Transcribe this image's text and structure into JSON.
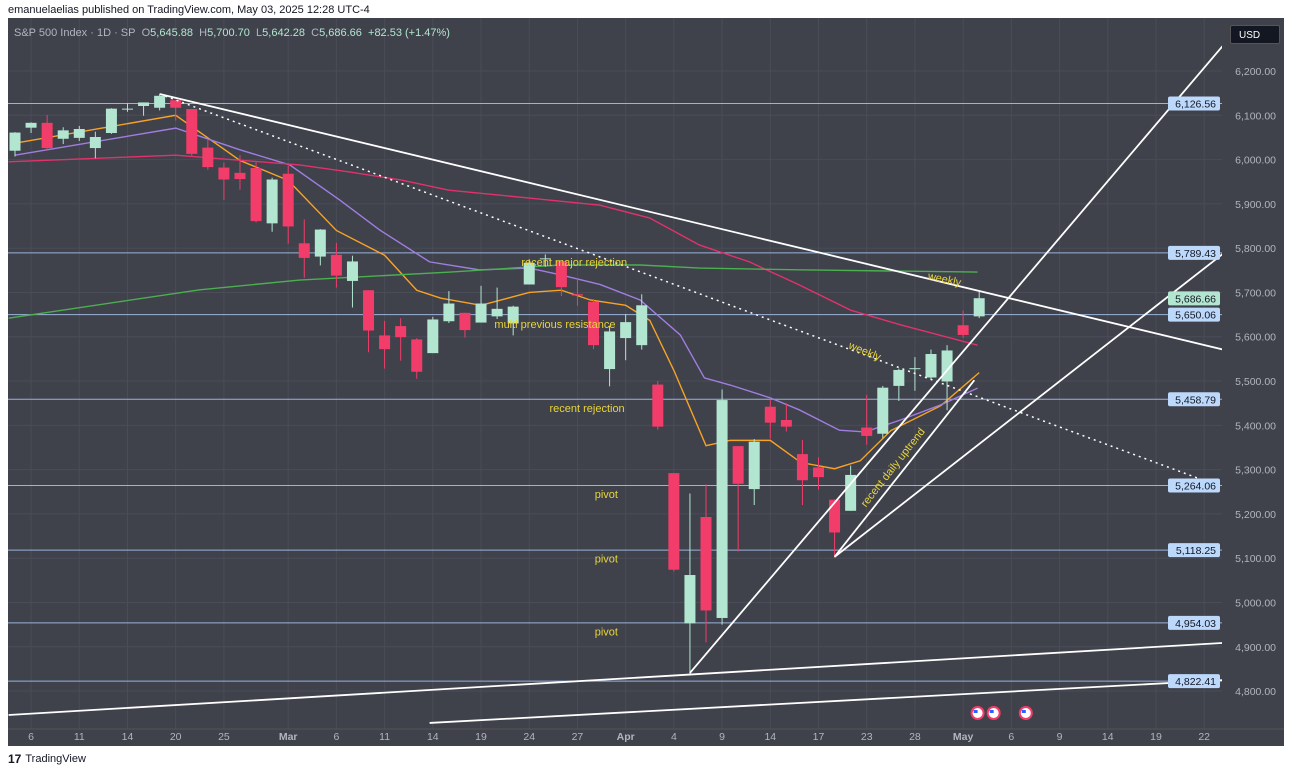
{
  "publisher_line": "emanuelaelias published on TradingView.com, May 03, 2025 12:28 UTC-4",
  "legend": {
    "symbol": "S&P 500 Index · 1D · SP",
    "o_label": "O",
    "o": "5,645.88",
    "h_label": "H",
    "h": "5,700.70",
    "l_label": "L",
    "l": "5,642.28",
    "c_label": "C",
    "c": "5,686.66",
    "change": "+82.53 (+1.47%)"
  },
  "currency": "USD",
  "footer": {
    "brand": "TradingView",
    "logo": "17"
  },
  "colors": {
    "bg": "#3f414b",
    "up": "#b2e6d1",
    "down": "#f23d6a",
    "ema_fast": "#f7a325",
    "ema_mid": "#a07ee0",
    "ma50": "#e0336b",
    "ma200": "#4caf50",
    "level": "#a9c8f5",
    "annotation": "#e8d53a"
  },
  "chart_data": {
    "type": "candlestick",
    "title": "S&P 500 Index · 1D · SP",
    "ylim": [
      4740,
      6270
    ],
    "y_ticks": [
      4800,
      4900,
      5000,
      5100,
      5200,
      5300,
      5400,
      5500,
      5600,
      5700,
      5800,
      5900,
      6000,
      6100,
      6200
    ],
    "y_tick_labels": [
      "4,800.00",
      "4,900.00",
      "5,000.00",
      "5,100.00",
      "5,200.00",
      "5,300.00",
      "5,400.00",
      "5,500.00",
      "5,600.00",
      "5,700.00",
      "5,800.00",
      "5,900.00",
      "6,000.00",
      "6,100.00",
      "6,200.00"
    ],
    "x_ticks": [
      {
        "i": 1,
        "label": "6"
      },
      {
        "i": 4,
        "label": "11"
      },
      {
        "i": 7,
        "label": "14"
      },
      {
        "i": 10,
        "label": "20"
      },
      {
        "i": 13,
        "label": "25"
      },
      {
        "i": 17,
        "label": "Mar"
      },
      {
        "i": 20,
        "label": "6"
      },
      {
        "i": 23,
        "label": "11"
      },
      {
        "i": 26,
        "label": "14"
      },
      {
        "i": 29,
        "label": "19"
      },
      {
        "i": 32,
        "label": "24"
      },
      {
        "i": 35,
        "label": "27"
      },
      {
        "i": 38,
        "label": "Apr"
      },
      {
        "i": 41,
        "label": "4"
      },
      {
        "i": 44,
        "label": "9"
      },
      {
        "i": 47,
        "label": "14"
      },
      {
        "i": 50,
        "label": "17"
      },
      {
        "i": 53,
        "label": "23"
      },
      {
        "i": 56,
        "label": "28"
      },
      {
        "i": 59,
        "label": "May"
      },
      {
        "i": 62,
        "label": "6"
      },
      {
        "i": 65,
        "label": "9"
      },
      {
        "i": 68,
        "label": "14"
      },
      {
        "i": 71,
        "label": "19"
      },
      {
        "i": 74,
        "label": "22"
      }
    ],
    "candles_ohlc": [
      [
        6020,
        6062,
        6007,
        6061
      ],
      [
        6072,
        6084,
        6060,
        6083
      ],
      [
        6083,
        6101,
        6020,
        6026
      ],
      [
        6047,
        6073,
        6035,
        6066
      ],
      [
        6049,
        6076,
        6042,
        6069
      ],
      [
        6026,
        6063,
        6003,
        6051
      ],
      [
        6060,
        6116,
        6058,
        6115
      ],
      [
        6115,
        6127,
        6108,
        6115
      ],
      [
        6121,
        6129,
        6099,
        6129
      ],
      [
        6117,
        6147,
        6111,
        6144
      ],
      [
        6134,
        6134,
        6088,
        6117
      ],
      [
        6114,
        6114,
        6009,
        6013
      ],
      [
        6027,
        6044,
        5977,
        5983
      ],
      [
        5982,
        5993,
        5909,
        5955
      ],
      [
        5970,
        6010,
        5932,
        5956
      ],
      [
        5981,
        5994,
        5858,
        5861
      ],
      [
        5856,
        5959,
        5837,
        5955
      ],
      [
        5968,
        5986,
        5810,
        5849
      ],
      [
        5811,
        5865,
        5733,
        5778
      ],
      [
        5781,
        5843,
        5761,
        5842
      ],
      [
        5785,
        5812,
        5711,
        5738
      ],
      [
        5726,
        5783,
        5666,
        5770
      ],
      [
        5705,
        5705,
        5565,
        5614
      ],
      [
        5603,
        5636,
        5528,
        5572
      ],
      [
        5624,
        5642,
        5546,
        5599
      ],
      [
        5594,
        5597,
        5505,
        5521
      ],
      [
        5563,
        5645,
        5563,
        5639
      ],
      [
        5635,
        5703,
        5631,
        5675
      ],
      [
        5654,
        5654,
        5598,
        5615
      ],
      [
        5632,
        5715,
        5632,
        5675
      ],
      [
        5646,
        5711,
        5640,
        5663
      ],
      [
        5630,
        5670,
        5603,
        5668
      ],
      [
        5718,
        5775,
        5718,
        5767
      ],
      [
        5775,
        5786,
        5758,
        5777
      ],
      [
        5771,
        5772,
        5692,
        5712
      ],
      [
        5696,
        5732,
        5670,
        5693
      ],
      [
        5679,
        5685,
        5572,
        5581
      ],
      [
        5527,
        5625,
        5488,
        5612
      ],
      [
        5597,
        5651,
        5547,
        5633
      ],
      [
        5581,
        5696,
        5571,
        5671
      ],
      [
        5492,
        5500,
        5390,
        5397
      ],
      [
        5292,
        5292,
        5070,
        5074
      ],
      [
        4953,
        5246,
        4835,
        5062
      ],
      [
        5193,
        5267,
        4910,
        4982
      ],
      [
        4965,
        5481,
        4950,
        5457
      ],
      [
        5353,
        5353,
        5115,
        5268
      ],
      [
        5256,
        5369,
        5220,
        5363
      ],
      [
        5442,
        5459,
        5370,
        5406
      ],
      [
        5412,
        5450,
        5386,
        5397
      ],
      [
        5335,
        5367,
        5220,
        5276
      ],
      [
        5305,
        5328,
        5255,
        5283
      ],
      [
        5232,
        5233,
        5101,
        5158
      ],
      [
        5207,
        5309,
        5207,
        5288
      ],
      [
        5395,
        5469,
        5356,
        5376
      ],
      [
        5381,
        5489,
        5371,
        5485
      ],
      [
        5489,
        5528,
        5455,
        5525
      ],
      [
        5529,
        5554,
        5478,
        5529
      ],
      [
        5508,
        5571,
        5505,
        5561
      ],
      [
        5499,
        5581,
        5434,
        5569
      ],
      [
        5626,
        5659,
        5597,
        5604
      ],
      [
        5646,
        5701,
        5642,
        5687
      ]
    ],
    "series": [
      {
        "name": "EMA fast",
        "color_key": "ema_fast",
        "points": [
          [
            0,
            6037
          ],
          [
            10,
            6100
          ],
          [
            14,
            5998
          ],
          [
            17,
            5953
          ],
          [
            20,
            5840
          ],
          [
            23,
            5784
          ],
          [
            25,
            5705
          ],
          [
            26.5,
            5687
          ],
          [
            29,
            5671
          ],
          [
            32,
            5700
          ],
          [
            34,
            5705
          ],
          [
            35.8,
            5683
          ],
          [
            38,
            5671
          ],
          [
            39.5,
            5637
          ],
          [
            41,
            5524
          ],
          [
            43,
            5354
          ],
          [
            44.5,
            5366
          ],
          [
            47,
            5366
          ],
          [
            48.9,
            5316
          ],
          [
            51,
            5302
          ],
          [
            52.6,
            5320
          ],
          [
            54.5,
            5388
          ],
          [
            57.6,
            5444
          ],
          [
            60,
            5519
          ]
        ]
      },
      {
        "name": "EMA mid",
        "color_key": "ema_mid",
        "points": [
          [
            0,
            6010
          ],
          [
            10,
            6071
          ],
          [
            14,
            6022
          ],
          [
            17.1,
            5988
          ],
          [
            20.2,
            5909
          ],
          [
            22.7,
            5841
          ],
          [
            25.8,
            5769
          ],
          [
            28.9,
            5751
          ],
          [
            32,
            5755
          ],
          [
            33.9,
            5740
          ],
          [
            36.4,
            5718
          ],
          [
            38.9,
            5683
          ],
          [
            41.4,
            5604
          ],
          [
            42.9,
            5507
          ],
          [
            44.5,
            5491
          ],
          [
            47,
            5462
          ],
          [
            48.8,
            5435
          ],
          [
            51.3,
            5389
          ],
          [
            52.9,
            5385
          ],
          [
            55.1,
            5412
          ],
          [
            57.6,
            5446
          ],
          [
            59.9,
            5484
          ]
        ]
      },
      {
        "name": "MA 50",
        "color_key": "ma50",
        "points": [
          [
            -0.4,
            5995
          ],
          [
            10,
            6010
          ],
          [
            17.7,
            5988
          ],
          [
            20.8,
            5972
          ],
          [
            24,
            5954
          ],
          [
            27,
            5931
          ],
          [
            32,
            5913
          ],
          [
            36.4,
            5897
          ],
          [
            39.5,
            5868
          ],
          [
            42.6,
            5807
          ],
          [
            45.7,
            5769
          ],
          [
            48.8,
            5717
          ],
          [
            52,
            5660
          ],
          [
            55.1,
            5627
          ],
          [
            59.9,
            5581
          ]
        ]
      },
      {
        "name": "MA 200",
        "color_key": "ma200",
        "points": [
          [
            -0.4,
            5642
          ],
          [
            11.5,
            5706
          ],
          [
            17.7,
            5728
          ],
          [
            27.1,
            5746
          ],
          [
            33.9,
            5762
          ],
          [
            38.9,
            5762
          ],
          [
            42.6,
            5755
          ],
          [
            48.8,
            5751
          ],
          [
            59.9,
            5746
          ]
        ]
      }
    ],
    "levels": [
      {
        "price": 6126.56,
        "label": "6,126.56"
      },
      {
        "price": 5789.43,
        "label": "5,789.43"
      },
      {
        "price": 5650.06,
        "label": "5,650.06"
      },
      {
        "price": 5458.79,
        "label": "5,458.79"
      },
      {
        "price": 5264.06,
        "label": "5,264.06"
      },
      {
        "price": 5118.25,
        "label": "5,118.25"
      },
      {
        "price": 4954.03,
        "label": "4,954.03"
      },
      {
        "price": 4822.41,
        "label": "4,822.41"
      }
    ],
    "last_price": {
      "price": 5686.66,
      "label": "5,686.66"
    },
    "trendlines": [
      {
        "name": "descending-resistance",
        "from": [
          9,
          6148
        ],
        "to": [
          75.3,
          5570
        ],
        "dotted": false
      },
      {
        "name": "descending-dotted",
        "from": [
          9,
          6148
        ],
        "to": [
          75.3,
          5258
        ],
        "dotted": true
      },
      {
        "name": "uptrend-from-apr7",
        "from": [
          42,
          4841
        ],
        "to": [
          75.3,
          6263
        ],
        "dotted": false
      },
      {
        "name": "uptrend-from-apr21",
        "from": [
          51,
          5103
        ],
        "to": [
          75.3,
          5791
        ],
        "dotted": false
      },
      {
        "name": "recent-daily-uptrend",
        "from": [
          51,
          5103
        ],
        "to": [
          59.7,
          5502
        ],
        "dotted": false
      },
      {
        "name": "lower-support-1",
        "from": [
          -0.4,
          4746
        ],
        "to": [
          75.3,
          4909
        ],
        "dotted": false
      },
      {
        "name": "lower-support-2",
        "from": [
          25.8,
          4728
        ],
        "to": [
          75.3,
          4825
        ],
        "dotted": false
      }
    ],
    "annotations": [
      {
        "text": "recent major rejection",
        "i": 34.8,
        "p": 5760,
        "angle": 0
      },
      {
        "text": "multi previous resistance",
        "i": 33.6,
        "p": 5620,
        "angle": 0
      },
      {
        "text": "recent rejection",
        "i": 35.6,
        "p": 5430,
        "angle": 0
      },
      {
        "text": "pivot",
        "i": 36.8,
        "p": 5236,
        "angle": 0
      },
      {
        "text": "pivot",
        "i": 36.8,
        "p": 5090,
        "angle": 0
      },
      {
        "text": "pivot",
        "i": 36.8,
        "p": 4925,
        "angle": 0
      },
      {
        "text": "weekly",
        "i": 57.8,
        "p": 5722,
        "angle": 12
      },
      {
        "text": "weekly",
        "i": 52.8,
        "p": 5560,
        "angle": 22
      },
      {
        "text": "recent daily uptrend",
        "i": 54.8,
        "p": 5300,
        "angle": -52
      }
    ],
    "events": [
      {
        "i": 59.9
      },
      {
        "i": 60.9
      },
      {
        "i": 62.9
      }
    ]
  }
}
